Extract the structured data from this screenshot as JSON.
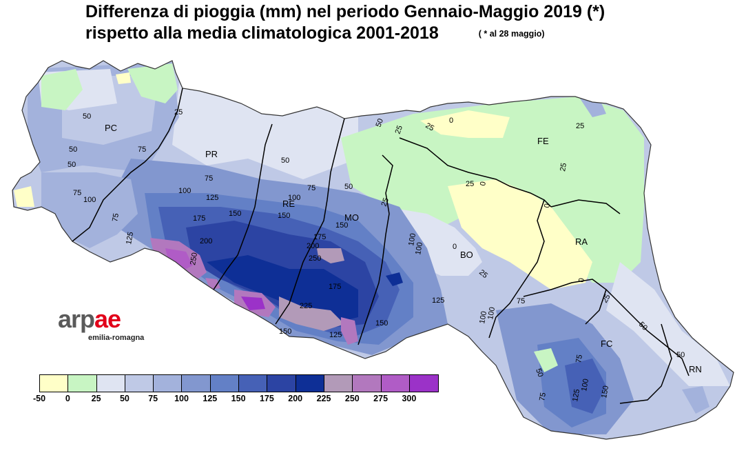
{
  "title": {
    "line1": "Differenza di pioggia (mm) nel periodo Gennaio-Maggio 2019   (*)",
    "line2": "rispetto alla media climatologica 2001-2018",
    "note": "( * al 28 maggio)"
  },
  "logo": {
    "text_gray": "arp",
    "text_red": "ae",
    "subtitle": "emilia-romagna"
  },
  "legend": {
    "colors": [
      "#ffffc8",
      "#c8f5c3",
      "#dfe4f2",
      "#bfc9e6",
      "#a3b2dc",
      "#8297cf",
      "#6380c6",
      "#4661b6",
      "#2c44a3",
      "#0e2f96",
      "#b29ab8",
      "#b278be",
      "#b05cc6",
      "#9b32c8"
    ],
    "labels": [
      "-50",
      "0",
      "25",
      "50",
      "75",
      "100",
      "125",
      "150",
      "175",
      "200",
      "225",
      "250",
      "275",
      "300"
    ]
  },
  "provinces": [
    {
      "code": "PC"
    },
    {
      "code": "PR"
    },
    {
      "code": "RE"
    },
    {
      "code": "MO"
    },
    {
      "code": "BO"
    },
    {
      "code": "FE"
    },
    {
      "code": "RA"
    },
    {
      "code": "FC"
    },
    {
      "code": "RN"
    }
  ],
  "contour_labels": [
    "50",
    "50",
    "50",
    "75",
    "75",
    "100",
    "75",
    "125",
    "25",
    "75",
    "100",
    "125",
    "150",
    "175",
    "200",
    "250",
    "50",
    "100",
    "150",
    "200",
    "225",
    "150",
    "50",
    "75",
    "175",
    "250",
    "150",
    "25",
    "50",
    "100",
    "25",
    "25",
    "0",
    "0",
    "25",
    "25",
    "0",
    "25",
    "0",
    "25",
    "75",
    "100",
    "125",
    "150",
    "175",
    "0",
    "25",
    "100",
    "125",
    "75",
    "50",
    "50",
    "75",
    "100",
    "125",
    "150",
    "50",
    "100"
  ],
  "colors": {
    "border": "#000000",
    "accent_red": "#e2001a"
  }
}
